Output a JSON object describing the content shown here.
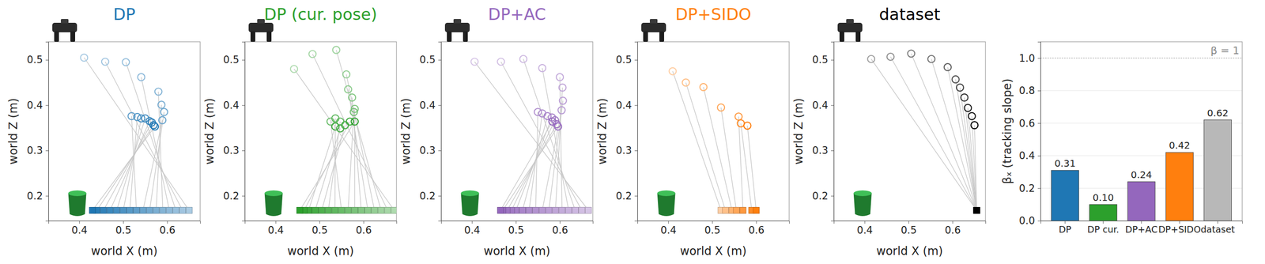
{
  "chart_data": [
    {
      "type": "scatter",
      "title": "DP",
      "color": "#1f77b4",
      "x_label": "world X (m)",
      "y_label": "world Z (m)",
      "xlim": [
        0.33,
        0.675
      ],
      "ylim": [
        0.145,
        0.54
      ],
      "xticks": [
        0.4,
        0.5,
        0.6
      ],
      "yticks": [
        0.2,
        0.3,
        0.4,
        0.5
      ],
      "pred_x": [
        0.411,
        0.459,
        0.506,
        0.541,
        0.58,
        0.587,
        0.593,
        0.589,
        0.519,
        0.532,
        0.541,
        0.55,
        0.56,
        0.565,
        0.569,
        0.572
      ],
      "pred_z": [
        0.505,
        0.496,
        0.495,
        0.462,
        0.43,
        0.401,
        0.385,
        0.367,
        0.376,
        0.374,
        0.371,
        0.371,
        0.365,
        0.362,
        0.356,
        0.353
      ],
      "target_x": [
        0.65,
        0.635,
        0.62,
        0.605,
        0.59,
        0.575,
        0.56,
        0.545,
        0.53,
        0.515,
        0.5,
        0.485,
        0.47,
        0.455,
        0.44,
        0.43
      ],
      "target_z": [
        0.168,
        0.168,
        0.168,
        0.168,
        0.168,
        0.168,
        0.168,
        0.168,
        0.168,
        0.168,
        0.168,
        0.168,
        0.168,
        0.168,
        0.168,
        0.168
      ]
    },
    {
      "type": "scatter",
      "title": "DP (cur. pose)",
      "color": "#2ca02c",
      "x_label": "world X (m)",
      "y_label": "world Z (m)",
      "xlim": [
        0.33,
        0.675
      ],
      "ylim": [
        0.145,
        0.54
      ],
      "xticks": [
        0.4,
        0.5,
        0.6
      ],
      "yticks": [
        0.2,
        0.3,
        0.4,
        0.5
      ],
      "pred_x": [
        0.442,
        0.484,
        0.538,
        0.561,
        0.565,
        0.574,
        0.58,
        0.578,
        0.525,
        0.536,
        0.547,
        0.558,
        0.547,
        0.536,
        0.569,
        0.58
      ],
      "pred_z": [
        0.48,
        0.513,
        0.522,
        0.468,
        0.435,
        0.417,
        0.392,
        0.385,
        0.364,
        0.371,
        0.364,
        0.356,
        0.349,
        0.353,
        0.364,
        0.364
      ],
      "target_x": [
        0.67,
        0.655,
        0.64,
        0.625,
        0.61,
        0.595,
        0.58,
        0.565,
        0.55,
        0.535,
        0.52,
        0.505,
        0.49,
        0.475,
        0.465,
        0.455
      ],
      "target_z": [
        0.168,
        0.168,
        0.168,
        0.168,
        0.168,
        0.168,
        0.168,
        0.168,
        0.168,
        0.168,
        0.168,
        0.168,
        0.168,
        0.168,
        0.168,
        0.168
      ]
    },
    {
      "type": "scatter",
      "title": "DP+AC",
      "color": "#9467bd",
      "x_label": "world X (m)",
      "y_label": "world Z (m)",
      "xlim": [
        0.33,
        0.675
      ],
      "ylim": [
        0.145,
        0.54
      ],
      "xticks": [
        0.4,
        0.5,
        0.6
      ],
      "yticks": [
        0.2,
        0.3,
        0.4,
        0.5
      ],
      "pred_x": [
        0.406,
        0.466,
        0.517,
        0.56,
        0.6,
        0.606,
        0.607,
        0.604,
        0.55,
        0.56,
        0.572,
        0.582,
        0.589,
        0.593,
        0.596,
        0.583
      ],
      "pred_z": [
        0.496,
        0.496,
        0.502,
        0.482,
        0.462,
        0.439,
        0.41,
        0.389,
        0.385,
        0.382,
        0.376,
        0.373,
        0.367,
        0.358,
        0.353,
        0.364
      ],
      "target_x": [
        0.665,
        0.65,
        0.635,
        0.62,
        0.605,
        0.59,
        0.575,
        0.56,
        0.545,
        0.53,
        0.515,
        0.5,
        0.49,
        0.48,
        0.47,
        0.465
      ],
      "target_z": [
        0.168,
        0.168,
        0.168,
        0.168,
        0.168,
        0.168,
        0.168,
        0.168,
        0.168,
        0.168,
        0.168,
        0.168,
        0.168,
        0.168,
        0.168,
        0.168
      ]
    },
    {
      "type": "scatter",
      "title": "DP+SIDO",
      "color": "#ff7f0e",
      "x_label": "world X (m)",
      "y_label": "world Z (m)",
      "xlim": [
        0.33,
        0.675
      ],
      "ylim": [
        0.145,
        0.54
      ],
      "xticks": [
        0.4,
        0.5,
        0.6
      ],
      "yticks": [
        0.2,
        0.3,
        0.4,
        0.5
      ],
      "pred_x": [
        0.41,
        0.44,
        0.48,
        0.52,
        0.56,
        0.565,
        0.58
      ],
      "pred_z": [
        0.475,
        0.45,
        0.44,
        0.395,
        0.375,
        0.36,
        0.355
      ],
      "target_x": [
        0.52,
        0.53,
        0.545,
        0.555,
        0.57,
        0.59,
        0.6
      ],
      "target_z": [
        0.168,
        0.168,
        0.168,
        0.168,
        0.168,
        0.168,
        0.168
      ]
    },
    {
      "type": "scatter",
      "title": "dataset",
      "color": "#000000",
      "x_label": "world X (m)",
      "y_label": "world Z (m)",
      "xlim": [
        0.33,
        0.675
      ],
      "ylim": [
        0.145,
        0.54
      ],
      "xticks": [
        0.4,
        0.5,
        0.6
      ],
      "yticks": [
        0.2,
        0.3,
        0.4,
        0.5
      ],
      "pred_x": [
        0.415,
        0.459,
        0.506,
        0.552,
        0.589,
        0.607,
        0.617,
        0.627,
        0.635,
        0.644,
        0.65
      ],
      "pred_z": [
        0.502,
        0.507,
        0.514,
        0.502,
        0.484,
        0.457,
        0.439,
        0.417,
        0.394,
        0.376,
        0.356
      ],
      "target_x": [
        0.655,
        0.655,
        0.655,
        0.655,
        0.655,
        0.655,
        0.655,
        0.655,
        0.655,
        0.655,
        0.655
      ],
      "target_z": [
        0.168,
        0.168,
        0.168,
        0.168,
        0.168,
        0.168,
        0.168,
        0.168,
        0.168,
        0.168,
        0.168
      ]
    },
    {
      "type": "bar",
      "y_label": "βₓ (tracking slope)",
      "categories": [
        "DP",
        "DP cur.",
        "DP+AC",
        "DP+SIDO",
        "dataset"
      ],
      "values": [
        0.31,
        0.1,
        0.24,
        0.42,
        0.62
      ],
      "value_labels": [
        "0.31",
        "0.10",
        "0.24",
        "0.42",
        "0.62"
      ],
      "colors": [
        "#1f77b4",
        "#2ca02c",
        "#9467bd",
        "#ff7f0e",
        "#b8b8b8"
      ],
      "ylim": [
        0,
        1.1
      ],
      "yticks": [
        {
          "value": 0,
          "label": "0.0"
        },
        0.2,
        0.4,
        0.6,
        0.8,
        {
          "value": 1,
          "label": "1.0"
        }
      ],
      "grid": true,
      "data_labels": true,
      "annotations": [
        {
          "text": "β = 1",
          "y": 1
        }
      ]
    }
  ]
}
